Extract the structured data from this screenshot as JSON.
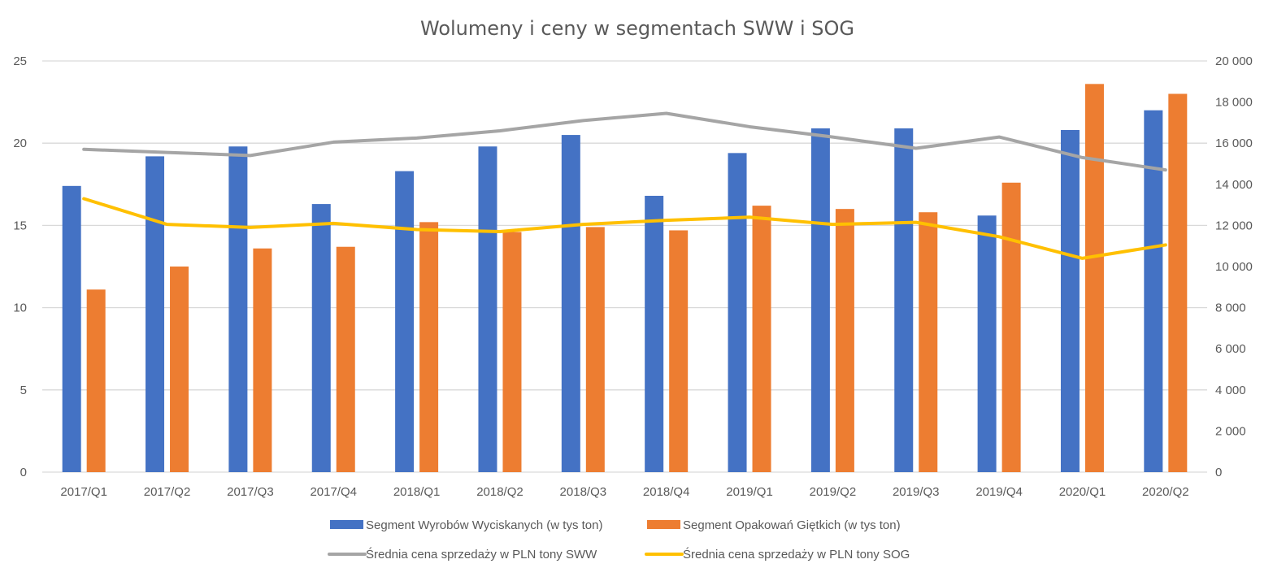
{
  "chart_data": {
    "type": "bar",
    "title": "Wolumeny i ceny w segmentach SWW i SOG",
    "categories": [
      "2017/Q1",
      "2017/Q2",
      "2017/Q3",
      "2017/Q4",
      "2018/Q1",
      "2018/Q2",
      "2018/Q3",
      "2018/Q4",
      "2019/Q1",
      "2019/Q2",
      "2019/Q3",
      "2019/Q4",
      "2020/Q1",
      "2020/Q2"
    ],
    "y_left": {
      "ylim": [
        0,
        25
      ],
      "ticks": [
        "0",
        "5",
        "10",
        "15",
        "20",
        "25"
      ]
    },
    "y_right": {
      "ylim": [
        0,
        20000
      ],
      "ticks": [
        "0",
        "2 000",
        "4 000",
        "6 000",
        "8 000",
        "10 000",
        "12 000",
        "14 000",
        "16 000",
        "18 000",
        "20 000"
      ]
    },
    "grid": true,
    "legend_position": "bottom",
    "series": [
      {
        "name": "Segment Wyrobów Wyciskanych (w tys ton)",
        "kind": "bar",
        "axis": "left",
        "color": "#4472C4",
        "values": [
          17.4,
          19.2,
          19.8,
          16.3,
          18.3,
          19.8,
          20.5,
          16.8,
          19.4,
          20.9,
          20.9,
          15.6,
          20.8,
          22.0
        ]
      },
      {
        "name": "Segment Opakowań Giętkich (w tys ton)",
        "kind": "bar",
        "axis": "left",
        "color": "#ED7D31",
        "values": [
          11.1,
          12.5,
          13.6,
          13.7,
          15.2,
          14.6,
          14.9,
          14.7,
          16.2,
          16.0,
          15.8,
          17.6,
          23.6,
          23.0
        ]
      },
      {
        "name": "Średnia cena sprzedaży w PLN tony SWW",
        "kind": "line",
        "axis": "right",
        "color": "#A5A5A5",
        "values": [
          15700,
          15550,
          15400,
          16050,
          16250,
          16600,
          17100,
          17450,
          16800,
          16300,
          15750,
          16300,
          15300,
          14700
        ]
      },
      {
        "name": "Średnia cena sprzedaży w PLN tony SOG",
        "kind": "line",
        "axis": "right",
        "color": "#FFC000",
        "values": [
          13300,
          12050,
          11900,
          12100,
          11800,
          11700,
          12050,
          12250,
          12400,
          12050,
          12150,
          11450,
          10400,
          11050
        ]
      }
    ]
  }
}
